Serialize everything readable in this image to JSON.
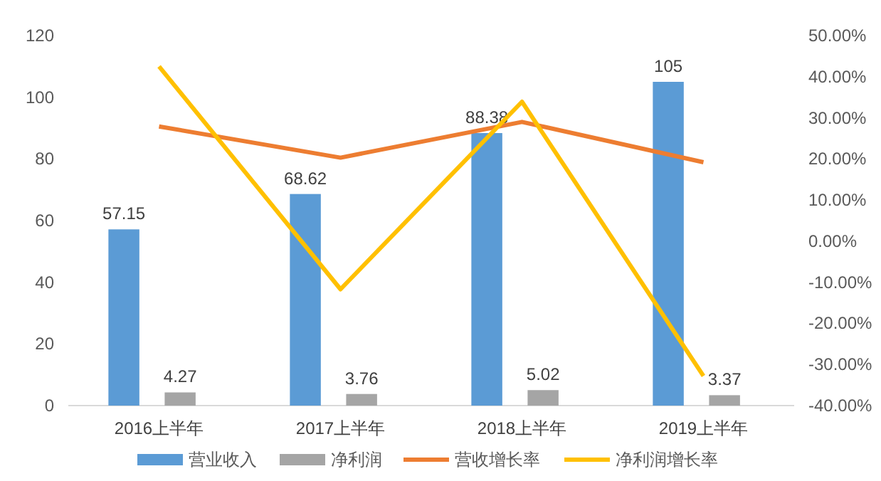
{
  "chart_data": {
    "type": "bar",
    "categories": [
      "2016上半年",
      "2017上半年",
      "2018上半年",
      "2019上半年"
    ],
    "series": [
      {
        "name": "营业收入",
        "color": "#5b9bd5",
        "values": [
          57.15,
          68.62,
          88.38,
          105
        ],
        "value_labels": [
          "57.15",
          "68.62",
          "88.38",
          "105"
        ]
      },
      {
        "name": "净利润",
        "color": "#a5a5a5",
        "values": [
          4.27,
          3.76,
          5.02,
          3.37
        ],
        "value_labels": [
          "4.27",
          "3.76",
          "5.02",
          "3.37"
        ]
      },
      {
        "name": "营收增长率",
        "type": "line",
        "axis": "y2",
        "color": "#ed7d31",
        "values": [
          27.9,
          20.3,
          29.0,
          19.2
        ]
      },
      {
        "name": "净利润增长率",
        "type": "line",
        "axis": "y2",
        "color": "#ffc000",
        "values": [
          42.5,
          -11.7,
          33.9,
          -32.8
        ]
      }
    ],
    "ylim": [
      0,
      120
    ],
    "yticks": [
      0,
      20,
      40,
      60,
      80,
      100,
      120
    ],
    "y2lim": [
      -40,
      50
    ],
    "y2ticks": [
      {
        "value": -40,
        "label": "-40.00%"
      },
      {
        "value": -30,
        "label": "-30.00%"
      },
      {
        "value": -20,
        "label": "-20.00%"
      },
      {
        "value": -10,
        "label": "-10.00%"
      },
      {
        "value": 0,
        "label": "0.00%"
      },
      {
        "value": 10,
        "label": "10.00%"
      },
      {
        "value": 20,
        "label": "20.00%"
      },
      {
        "value": 30,
        "label": "30.00%"
      },
      {
        "value": 40,
        "label": "40.00%"
      },
      {
        "value": 50,
        "label": "50.00%"
      }
    ],
    "legend": "bottom",
    "grid": false,
    "line_style": "solid"
  }
}
